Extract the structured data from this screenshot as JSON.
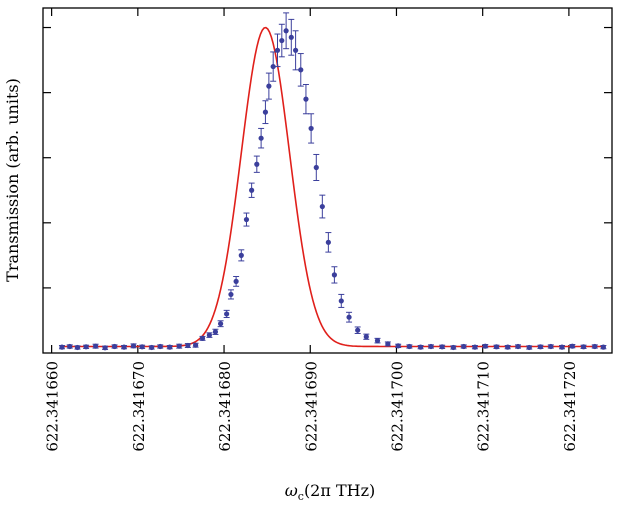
{
  "chart_data": {
    "type": "scatter",
    "xlabel_main": "ω",
    "xlabel_sub": "c",
    "xlabel_rest": "(2π THz)",
    "ylabel": "Transmission (arb. units)",
    "xlim": [
      622.341659,
      622.341725
    ],
    "ylim": [
      0,
      1.06
    ],
    "grid": false,
    "x_ticks": [
      622.34166,
      622.34167,
      622.34168,
      622.34169,
      622.3417,
      622.34171,
      622.34172
    ],
    "x_tick_labels": [
      "622.341660",
      "622.341670",
      "622.341680",
      "622.341690",
      "622.341700",
      "622.341710",
      "622.341720"
    ],
    "y_ticks": [
      0.2,
      0.4,
      0.6,
      0.8,
      1.0
    ],
    "colors": {
      "points": "#3b3f9c",
      "fit": "#e0201b",
      "errorbar": "#3b3f9c",
      "axis": "#000000"
    },
    "fit": {
      "type": "gaussian",
      "center": 622.3416848,
      "sigma": 2.8e-06,
      "amplitude": 1.0,
      "baseline": 0.02
    },
    "series": [
      {
        "x": [
          622.3416612,
          622.3416621,
          622.341663,
          622.341664,
          622.3416651,
          622.3416662,
          622.3416673,
          622.3416684,
          622.3416695,
          622.3416705,
          622.3416716,
          622.3416726,
          622.3416737,
          622.3416748,
          622.3416758,
          622.3416767,
          622.3416775,
          622.3416783,
          622.341679,
          622.3416796,
          622.3416803,
          622.3416808,
          622.3416814,
          622.341682,
          622.3416826,
          622.3416832,
          622.3416838,
          622.3416843,
          622.3416848,
          622.3416852,
          622.3416857,
          622.3416862,
          622.3416867,
          622.3416872,
          622.3416878,
          622.3416883,
          622.3416889,
          622.3416895,
          622.3416901,
          622.3416907,
          622.3416914,
          622.3416921,
          622.3416928,
          622.3416936,
          622.3416945,
          622.3416955,
          622.3416965,
          622.3416978,
          622.341699,
          622.3417002,
          622.3417015,
          622.3417028,
          622.341704,
          622.3417053,
          622.3417066,
          622.3417078,
          622.3417091,
          622.3417103,
          622.3417116,
          622.3417129,
          622.3417141,
          622.3417154,
          622.3417167,
          622.3417179,
          622.3417192,
          622.3417204,
          622.3417217,
          622.341723,
          622.341724
        ],
        "y": [
          0.018,
          0.02,
          0.017,
          0.019,
          0.021,
          0.016,
          0.02,
          0.018,
          0.022,
          0.019,
          0.017,
          0.02,
          0.018,
          0.021,
          0.023,
          0.024,
          0.045,
          0.055,
          0.065,
          0.09,
          0.12,
          0.18,
          0.22,
          0.3,
          0.41,
          0.5,
          0.58,
          0.66,
          0.74,
          0.82,
          0.88,
          0.93,
          0.96,
          0.99,
          0.97,
          0.93,
          0.87,
          0.78,
          0.69,
          0.57,
          0.45,
          0.34,
          0.24,
          0.16,
          0.11,
          0.07,
          0.05,
          0.038,
          0.028,
          0.022,
          0.02,
          0.018,
          0.02,
          0.019,
          0.017,
          0.02,
          0.018,
          0.021,
          0.019,
          0.018,
          0.02,
          0.017,
          0.019,
          0.02,
          0.018,
          0.021,
          0.019,
          0.02,
          0.018
        ],
        "err": [
          0.005,
          0.005,
          0.005,
          0.005,
          0.006,
          0.005,
          0.005,
          0.005,
          0.006,
          0.005,
          0.005,
          0.005,
          0.005,
          0.006,
          0.006,
          0.006,
          0.006,
          0.007,
          0.008,
          0.009,
          0.011,
          0.014,
          0.015,
          0.017,
          0.02,
          0.022,
          0.025,
          0.03,
          0.035,
          0.04,
          0.045,
          0.05,
          0.05,
          0.055,
          0.055,
          0.06,
          0.05,
          0.045,
          0.045,
          0.04,
          0.035,
          0.03,
          0.025,
          0.02,
          0.015,
          0.01,
          0.008,
          0.007,
          0.006,
          0.005,
          0.005,
          0.005,
          0.005,
          0.005,
          0.005,
          0.005,
          0.005,
          0.005,
          0.005,
          0.005,
          0.005,
          0.005,
          0.005,
          0.005,
          0.005,
          0.005,
          0.005,
          0.005,
          0.005
        ]
      }
    ]
  }
}
